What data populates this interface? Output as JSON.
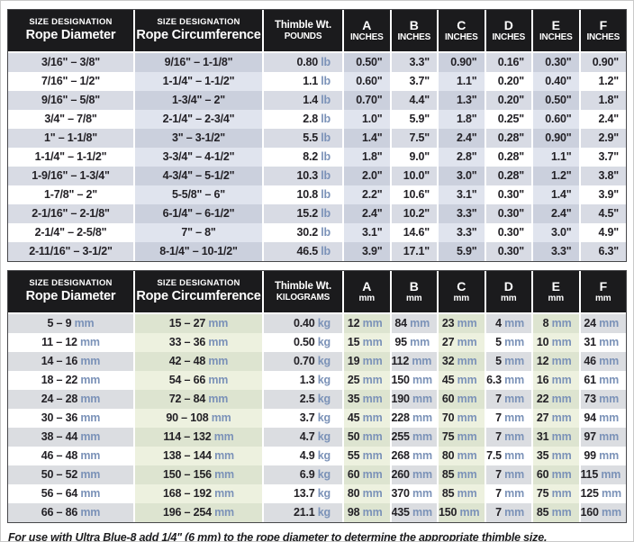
{
  "colors": {
    "header_bg": "#1b1b1d",
    "header_text": "#ffffff",
    "value_text": "#232126",
    "unit_text": "#7b92b8",
    "inches_row_shade": "#d8dbe4",
    "inches_column_tint": "#e0e4ee",
    "metric_row_shade": "#dbdde1",
    "metric_column_tint": "#edf1df"
  },
  "tables": [
    {
      "id": "inches",
      "headers": [
        [
          "SIZE DESIGNATION",
          "Rope Diameter"
        ],
        [
          "SIZE DESIGNATION",
          "Rope Circumference"
        ],
        [
          "Thimble Wt.",
          "POUNDS"
        ],
        [
          "A",
          "INCHES"
        ],
        [
          "B",
          "INCHES"
        ],
        [
          "C",
          "INCHES"
        ],
        [
          "D",
          "INCHES"
        ],
        [
          "E",
          "INCHES"
        ],
        [
          "F",
          "INCHES"
        ]
      ],
      "rows": [
        [
          "3/16\" – 3/8\"",
          "9/16\" – 1-1/8\"",
          "0.80 lb",
          "0.50\"",
          "3.3\"",
          "0.90\"",
          "0.16\"",
          "0.30\"",
          "0.90\""
        ],
        [
          "7/16\" – 1/2\"",
          "1-1/4\" – 1-1/2\"",
          "1.1 lb",
          "0.60\"",
          "3.7\"",
          "1.1\"",
          "0.20\"",
          "0.40\"",
          "1.2\""
        ],
        [
          "9/16\" – 5/8\"",
          "1-3/4\" – 2\"",
          "1.4 lb",
          "0.70\"",
          "4.4\"",
          "1.3\"",
          "0.20\"",
          "0.50\"",
          "1.8\""
        ],
        [
          "3/4\" – 7/8\"",
          "2-1/4\" – 2-3/4\"",
          "2.8 lb",
          "1.0\"",
          "5.9\"",
          "1.8\"",
          "0.25\"",
          "0.60\"",
          "2.4\""
        ],
        [
          "1\" – 1-1/8\"",
          "3\" – 3-1/2\"",
          "5.5 lb",
          "1.4\"",
          "7.5\"",
          "2.4\"",
          "0.28\"",
          "0.90\"",
          "2.9\""
        ],
        [
          "1-1/4\" – 1-1/2\"",
          "3-3/4\" – 4-1/2\"",
          "8.2 lb",
          "1.8\"",
          "9.0\"",
          "2.8\"",
          "0.28\"",
          "1.1\"",
          "3.7\""
        ],
        [
          "1-9/16\" – 1-3/4\"",
          "4-3/4\" – 5-1/2\"",
          "10.3 lb",
          "2.0\"",
          "10.0\"",
          "3.0\"",
          "0.28\"",
          "1.2\"",
          "3.8\""
        ],
        [
          "1-7/8\" – 2\"",
          "5-5/8\" – 6\"",
          "10.8 lb",
          "2.2\"",
          "10.6\"",
          "3.1\"",
          "0.30\"",
          "1.4\"",
          "3.9\""
        ],
        [
          "2-1/16\" – 2-1/8\"",
          "6-1/4\" – 6-1/2\"",
          "15.2 lb",
          "2.4\"",
          "10.2\"",
          "3.3\"",
          "0.30\"",
          "2.4\"",
          "4.5\""
        ],
        [
          "2-1/4\" – 2-5/8\"",
          "7\" – 8\"",
          "30.2 lb",
          "3.1\"",
          "14.6\"",
          "3.3\"",
          "0.30\"",
          "3.0\"",
          "4.9\""
        ],
        [
          "2-11/16\" – 3-1/2\"",
          "8-1/4\" – 10-1/2\"",
          "46.5 lb",
          "3.9\"",
          "17.1\"",
          "5.9\"",
          "0.30\"",
          "3.3\"",
          "6.3\""
        ]
      ]
    },
    {
      "id": "metric",
      "headers": [
        [
          "SIZE DESIGNATION",
          "Rope Diameter"
        ],
        [
          "SIZE DESIGNATION",
          "Rope Circumference"
        ],
        [
          "Thimble Wt.",
          "KILOGRAMS"
        ],
        [
          "A",
          "mm"
        ],
        [
          "B",
          "mm"
        ],
        [
          "C",
          "mm"
        ],
        [
          "D",
          "mm"
        ],
        [
          "E",
          "mm"
        ],
        [
          "F",
          "mm"
        ]
      ],
      "rows": [
        [
          "5 – 9 mm",
          "15 – 27 mm",
          "0.40 kg",
          "12 mm",
          "84 mm",
          "23 mm",
          "4 mm",
          "8 mm",
          "24 mm"
        ],
        [
          "11 – 12 mm",
          "33 – 36 mm",
          "0.50 kg",
          "15 mm",
          "95 mm",
          "27 mm",
          "5 mm",
          "10 mm",
          "31 mm"
        ],
        [
          "14 – 16 mm",
          "42 – 48 mm",
          "0.70 kg",
          "19 mm",
          "112 mm",
          "32 mm",
          "5 mm",
          "12 mm",
          "46 mm"
        ],
        [
          "18 – 22 mm",
          "54 – 66 mm",
          "1.3 kg",
          "25 mm",
          "150 mm",
          "45 mm",
          "6.3 mm",
          "16 mm",
          "61 mm"
        ],
        [
          "24 – 28 mm",
          "72 – 84 mm",
          "2.5 kg",
          "35 mm",
          "190 mm",
          "60 mm",
          "7 mm",
          "22 mm",
          "73 mm"
        ],
        [
          "30 – 36 mm",
          "90 – 108 mm",
          "3.7 kg",
          "45 mm",
          "228 mm",
          "70 mm",
          "7 mm",
          "27 mm",
          "94 mm"
        ],
        [
          "38 – 44 mm",
          "114 – 132 mm",
          "4.7 kg",
          "50 mm",
          "255 mm",
          "75 mm",
          "7 mm",
          "31 mm",
          "97 mm"
        ],
        [
          "46 – 48 mm",
          "138 – 144 mm",
          "4.9 kg",
          "55 mm",
          "268 mm",
          "80 mm",
          "7.5 mm",
          "35 mm",
          "99 mm"
        ],
        [
          "50 – 52 mm",
          "150 – 156 mm",
          "6.9 kg",
          "60 mm",
          "260 mm",
          "85 mm",
          "7 mm",
          "60 mm",
          "115 mm"
        ],
        [
          "56 – 64 mm",
          "168 – 192 mm",
          "13.7 kg",
          "80 mm",
          "370 mm",
          "85 mm",
          "7 mm",
          "75 mm",
          "125 mm"
        ],
        [
          "66 – 86 mm",
          "196 – 254 mm",
          "21.1 kg",
          "98 mm",
          "435 mm",
          "150 mm",
          "7 mm",
          "85 mm",
          "160 mm"
        ]
      ]
    }
  ],
  "footnote": "For use with Ultra Blue-8 add 1/4\" (6 mm) to the rope diameter to determine the appropriate thimble size."
}
